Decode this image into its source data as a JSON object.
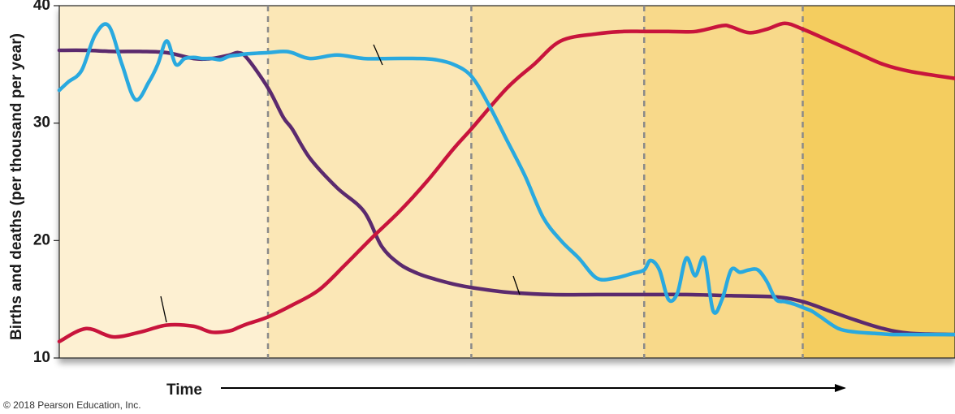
{
  "chart_data": {
    "type": "line",
    "title": "",
    "xlabel": "Time",
    "ylabel": "Births and deaths (per thousand per year)",
    "ylim": [
      10,
      40
    ],
    "yticks": [
      10,
      20,
      30,
      40
    ],
    "x_range": [
      0,
      100
    ],
    "grid": false,
    "legend": "none",
    "stage_boundaries": [
      23.3,
      46.0,
      65.3,
      83.0
    ],
    "stage_colors": [
      "#fdf0d2",
      "#fbe7b6",
      "#f9e1a4",
      "#f8d98a",
      "#f4cd5e"
    ],
    "series": [
      {
        "color": "#5b2a6e",
        "x": [
          0,
          3,
          6,
          9,
          12,
          15,
          17,
          19,
          20,
          21,
          23.3,
          25,
          26,
          28,
          31,
          34,
          36,
          38,
          40,
          42,
          44,
          46,
          50,
          55,
          60,
          65.3,
          70,
          75,
          80,
          83,
          86,
          89,
          92,
          95,
          100
        ],
        "y": [
          36.2,
          36.2,
          36.1,
          36.1,
          36.0,
          35.5,
          35.5,
          35.8,
          36.0,
          35.5,
          33.0,
          30.5,
          29.5,
          27.0,
          24.5,
          22.5,
          19.5,
          18.0,
          17.2,
          16.7,
          16.3,
          16.0,
          15.6,
          15.4,
          15.4,
          15.4,
          15.4,
          15.3,
          15.2,
          14.8,
          14.0,
          13.2,
          12.5,
          12.1,
          12.0
        ]
      },
      {
        "color": "#c8143c",
        "x": [
          0,
          3,
          6,
          9,
          12,
          15,
          17,
          19,
          20,
          21,
          23.3,
          26,
          29,
          32,
          35,
          38,
          41,
          44,
          46,
          50,
          53,
          56,
          60,
          63,
          65.3,
          68,
          71,
          74,
          75,
          77,
          79,
          81,
          83,
          86,
          89,
          92,
          95,
          100
        ],
        "y": [
          11.4,
          12.5,
          11.8,
          12.2,
          12.8,
          12.7,
          12.2,
          12.3,
          12.6,
          12.9,
          13.5,
          14.5,
          15.8,
          18.0,
          20.3,
          22.5,
          25.0,
          27.8,
          29.5,
          33.0,
          35.0,
          37.0,
          37.6,
          37.8,
          37.8,
          37.8,
          37.8,
          38.3,
          38.2,
          37.7,
          38.0,
          38.5,
          38.0,
          37.0,
          36.0,
          35.0,
          34.4,
          33.8
        ]
      },
      {
        "color": "#29a9df",
        "x": [
          0,
          1,
          2.5,
          4,
          5.5,
          7,
          8.5,
          10,
          11,
          12,
          13,
          14,
          15,
          16,
          17,
          18,
          19,
          20,
          21,
          23.3,
          25,
          26,
          28,
          31,
          34,
          37,
          40,
          42,
          44,
          46,
          48,
          50,
          52,
          54,
          56,
          58,
          60,
          62,
          64,
          65.3,
          66,
          67,
          68,
          69,
          70,
          71,
          72,
          73,
          74,
          75,
          76,
          77,
          78,
          79,
          80,
          81,
          82,
          83,
          84,
          85,
          87,
          89,
          91,
          93,
          95,
          100
        ],
        "y": [
          32.8,
          33.5,
          34.5,
          37.5,
          38.3,
          35.0,
          32.0,
          33.5,
          35.0,
          37.0,
          35.0,
          35.5,
          35.6,
          35.5,
          35.5,
          35.4,
          35.7,
          35.8,
          35.9,
          36.0,
          36.1,
          36.0,
          35.5,
          35.8,
          35.5,
          35.5,
          35.5,
          35.4,
          35.0,
          34.0,
          31.5,
          28.5,
          25.5,
          22.0,
          20.0,
          18.5,
          16.8,
          16.8,
          17.2,
          17.5,
          18.3,
          17.5,
          15.0,
          15.5,
          18.5,
          17.0,
          18.5,
          14.0,
          15.0,
          17.5,
          17.3,
          17.5,
          17.5,
          16.5,
          15.0,
          14.8,
          14.6,
          14.3,
          14.0,
          13.5,
          12.5,
          12.2,
          12.1,
          12.0,
          12.0,
          12.0
        ]
      }
    ],
    "annotations": [
      "© 2018 Pearson Education, Inc."
    ]
  }
}
